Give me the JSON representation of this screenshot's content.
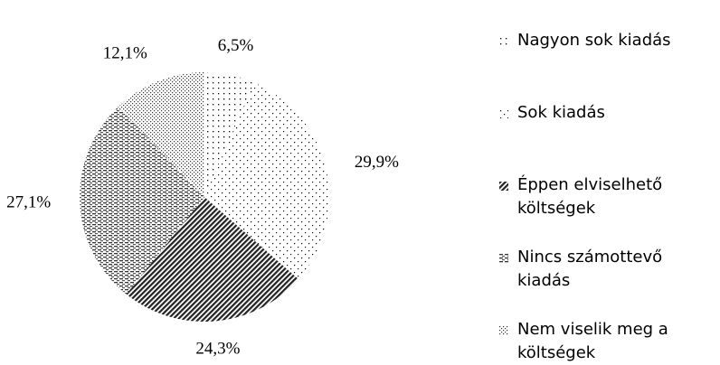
{
  "chart_data": {
    "type": "pie",
    "categories": [
      "Nagyon sok kiadás",
      "Sok kiadás",
      "Éppen elviselhető költségek",
      "Nincs számottevő kiadás",
      "Nem viselik meg a költségek"
    ],
    "values": [
      6.5,
      29.9,
      24.3,
      27.1,
      12.1
    ],
    "value_labels": [
      "6,5%",
      "29,9%",
      "24,3%",
      "27,1%",
      "12,1%"
    ],
    "legend": "right"
  }
}
